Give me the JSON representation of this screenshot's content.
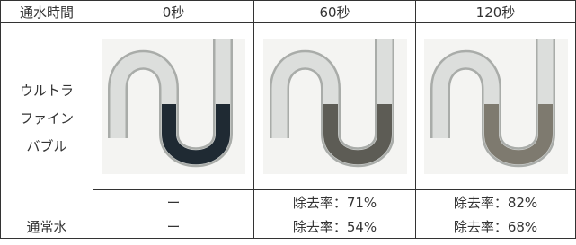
{
  "table": {
    "header": [
      "通水時間",
      "0秒",
      "60秒",
      "120秒"
    ],
    "rows": [
      {
        "label_lines": [
          "ウルトラ",
          "ファイン",
          "バブル"
        ],
        "results": [
          "ー",
          "除去率：71%",
          "除去率：82%"
        ]
      },
      {
        "label": "通常水",
        "results": [
          "ー",
          "除去率：54%",
          "除去率：68%"
        ]
      }
    ]
  }
}
